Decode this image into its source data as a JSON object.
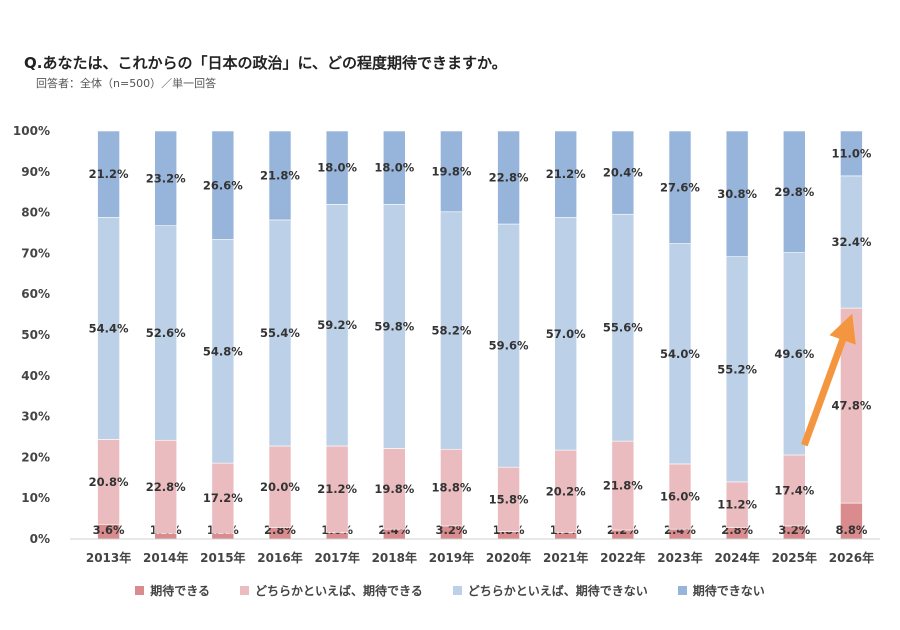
{
  "title": "Q.あなたは、これからの「日本の政治」に、どの程度期待できますか。",
  "subtitle": "回答者：全体（n=500）／単一回答",
  "chart_data": {
    "type": "bar",
    "stacked": true,
    "percent": true,
    "categories": [
      "2013年",
      "2014年",
      "2015年",
      "2016年",
      "2017年",
      "2018年",
      "2019年",
      "2020年",
      "2021年",
      "2022年",
      "2023年",
      "2024年",
      "2025年",
      "2026年"
    ],
    "ylim": [
      0,
      100
    ],
    "yticks": [
      "0%",
      "10%",
      "20%",
      "30%",
      "40%",
      "50%",
      "60%",
      "70%",
      "80%",
      "90%",
      "100%"
    ],
    "grid": false,
    "legend_position": "bottom",
    "series": [
      {
        "name": "期待できる",
        "color": "#d98b8d",
        "values": [
          3.6,
          1.4,
          1.4,
          2.8,
          1.6,
          2.4,
          3.2,
          1.8,
          1.6,
          2.2,
          2.4,
          2.8,
          3.2,
          8.8
        ],
        "labels": [
          "3.6%",
          "1.4%",
          "1.4%",
          "2.8%",
          "1.6%",
          "2.4%",
          "3.2%",
          "1.8%",
          "1.6%",
          "2.2%",
          "2.4%",
          "2.8%",
          "3.2%",
          "8.8%"
        ]
      },
      {
        "name": "どちらかといえば、期待できる",
        "color": "#ebbcbf",
        "values": [
          20.8,
          22.8,
          17.2,
          20.0,
          21.2,
          19.8,
          18.8,
          15.8,
          20.2,
          21.8,
          16.0,
          11.2,
          17.4,
          47.8
        ],
        "labels": [
          "20.8%",
          "22.8%",
          "17.2%",
          "20.0%",
          "21.2%",
          "19.8%",
          "18.8%",
          "15.8%",
          "20.2%",
          "21.8%",
          "16.0%",
          "11.2%",
          "17.4%",
          "47.8%"
        ]
      },
      {
        "name": "どちらかといえば、期待できない",
        "color": "#bcd0e8",
        "values": [
          54.4,
          52.6,
          54.8,
          55.4,
          59.2,
          59.8,
          58.2,
          59.6,
          57.0,
          55.6,
          54.0,
          55.2,
          49.6,
          32.4
        ],
        "labels": [
          "54.4%",
          "52.6%",
          "54.8%",
          "55.4%",
          "59.2%",
          "59.8%",
          "58.2%",
          "59.6%",
          "57.0%",
          "55.6%",
          "54.0%",
          "55.2%",
          "49.6%",
          "32.4%"
        ]
      },
      {
        "name": "期待できない",
        "color": "#97b4da",
        "values": [
          21.2,
          23.2,
          26.6,
          21.8,
          18.0,
          18.0,
          19.8,
          22.8,
          21.2,
          20.4,
          27.6,
          30.8,
          29.8,
          11.0
        ],
        "labels": [
          "21.2%",
          "23.2%",
          "26.6%",
          "21.8%",
          "18.0%",
          "18.0%",
          "19.8%",
          "22.8%",
          "21.2%",
          "20.4%",
          "27.6%",
          "30.8%",
          "29.8%",
          "11.0%"
        ]
      }
    ],
    "annotation": {
      "type": "arrow",
      "color": "#f4963f",
      "from": {
        "category": "2025年",
        "value": 23
      },
      "to": {
        "category": "2026年",
        "value": 52
      }
    }
  }
}
